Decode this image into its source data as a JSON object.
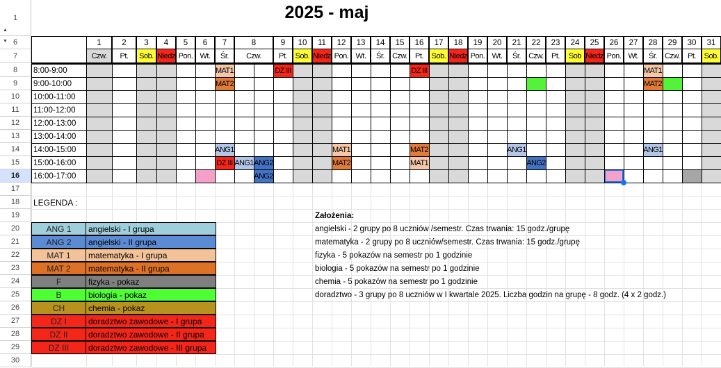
{
  "title": "2025 - maj",
  "colors": {
    "weekend_fill": "#d9d9d9",
    "saturday_header": "#ffff33",
    "sunday_header": "#f4261a",
    "holiday_header": "#d9d9d9",
    "ANG1": "#b4c6e7",
    "ANG2": "#4472c4",
    "MAT1": "#f4c7a8",
    "MAT2": "#e07b39",
    "DZ": "#f4261a",
    "B": "#55f23a",
    "F": "#a6a6a6",
    "pink": "#f4a0c8",
    "selection": "#1a73e8"
  },
  "row_numbers": [
    "1",
    "6",
    "7",
    "8",
    "9",
    "10",
    "11",
    "12",
    "13",
    "14",
    "15",
    "16",
    "17",
    "18",
    "19",
    "20",
    "21",
    "22",
    "23",
    "24",
    "25",
    "26",
    "27",
    "28",
    "29",
    "30"
  ],
  "selected_row": "16",
  "days": [
    {
      "num": "1",
      "name": "Czw.",
      "kind": "holiday"
    },
    {
      "num": "2",
      "name": "Pt.",
      "kind": "work"
    },
    {
      "num": "3",
      "name": "Sob.",
      "kind": "sat"
    },
    {
      "num": "4",
      "name": "Niedz",
      "kind": "sun"
    },
    {
      "num": "5",
      "name": "Pon.",
      "kind": "work"
    },
    {
      "num": "6",
      "name": "Wt.",
      "kind": "work"
    },
    {
      "num": "7",
      "name": "Śr.",
      "kind": "work"
    },
    {
      "num": "8",
      "name": "Czw.",
      "kind": "work"
    },
    {
      "num": "9",
      "name": "Pt.",
      "kind": "work"
    },
    {
      "num": "10",
      "name": "Sob.",
      "kind": "sat"
    },
    {
      "num": "11",
      "name": "Niedz",
      "kind": "sun"
    },
    {
      "num": "12",
      "name": "Pon.",
      "kind": "work"
    },
    {
      "num": "13",
      "name": "Wt.",
      "kind": "work"
    },
    {
      "num": "14",
      "name": "Śr.",
      "kind": "work"
    },
    {
      "num": "15",
      "name": "Czw.",
      "kind": "work"
    },
    {
      "num": "16",
      "name": "Pt.",
      "kind": "work"
    },
    {
      "num": "17",
      "name": "Sob.",
      "kind": "sat"
    },
    {
      "num": "18",
      "name": "Niedz",
      "kind": "sun"
    },
    {
      "num": "19",
      "name": "Pon.",
      "kind": "work"
    },
    {
      "num": "20",
      "name": "Wt.",
      "kind": "work"
    },
    {
      "num": "21",
      "name": "Śr.",
      "kind": "work"
    },
    {
      "num": "22",
      "name": "Czw.",
      "kind": "work"
    },
    {
      "num": "23",
      "name": "Pt.",
      "kind": "work"
    },
    {
      "num": "24",
      "name": "Sob",
      "kind": "sat"
    },
    {
      "num": "25",
      "name": "Niedz",
      "kind": "sun"
    },
    {
      "num": "26",
      "name": "Pon.",
      "kind": "work"
    },
    {
      "num": "27",
      "name": "Wt.",
      "kind": "work"
    },
    {
      "num": "28",
      "name": "Śr.",
      "kind": "work"
    },
    {
      "num": "29",
      "name": "Czw.",
      "kind": "work"
    },
    {
      "num": "30",
      "name": "Pt.",
      "kind": "work"
    },
    {
      "num": "31",
      "name": "Sob.",
      "kind": "sat"
    }
  ],
  "time_slots": [
    "8:00-9:00",
    "9:00-10:00",
    "10:00-11:00",
    "11:00-12:00",
    "12:00-13:00",
    "13:00-14:00",
    "14:00-15:00",
    "15:00-16:00",
    "16:00-17:00"
  ],
  "events": [
    {
      "day": "7",
      "slot": "8:00-9:00",
      "label": "MAT1",
      "color": "MAT1"
    },
    {
      "day": "7",
      "slot": "9:00-10:00",
      "label": "MAT2",
      "color": "MAT2"
    },
    {
      "day": "7",
      "slot": "14:00-15:00",
      "label": "ANG1",
      "color": "ANG1"
    },
    {
      "day": "7",
      "slot": "15:00-16:00",
      "label": "DZ III",
      "color": "DZ"
    },
    {
      "day": "8",
      "sub": 0,
      "slot": "15:00-16:00",
      "label": "ANG1",
      "color": "ANG1"
    },
    {
      "day": "8",
      "sub": 1,
      "slot": "15:00-16:00",
      "label": "ANG2",
      "color": "ANG2"
    },
    {
      "day": "8",
      "sub": 1,
      "slot": "16:00-17:00",
      "label": "ANG2",
      "color": "ANG2"
    },
    {
      "day": "6",
      "slot": "16:00-17:00",
      "label": "",
      "color": "pink"
    },
    {
      "day": "9",
      "slot": "8:00-9:00",
      "label": "DZ III",
      "color": "DZ"
    },
    {
      "day": "12",
      "slot": "14:00-15:00",
      "label": "MAT1",
      "color": "MAT1"
    },
    {
      "day": "12",
      "slot": "15:00-16:00",
      "label": "MAT2",
      "color": "MAT2"
    },
    {
      "day": "16",
      "slot": "8:00-9:00",
      "label": "DZ III",
      "color": "DZ"
    },
    {
      "day": "16",
      "slot": "14:00-15:00",
      "label": "MAT2",
      "color": "MAT2"
    },
    {
      "day": "16",
      "slot": "15:00-16:00",
      "label": "MAT1",
      "color": "MAT1"
    },
    {
      "day": "21",
      "slot": "14:00-15:00",
      "label": "ANG1",
      "color": "ANG1"
    },
    {
      "day": "22",
      "slot": "9:00-10:00",
      "label": "",
      "color": "B"
    },
    {
      "day": "22",
      "slot": "15:00-16:00",
      "label": "ANG2",
      "color": "ANG2"
    },
    {
      "day": "26",
      "slot": "16:00-17:00",
      "label": "",
      "color": "pink",
      "selected": true
    },
    {
      "day": "28",
      "slot": "8:00-9:00",
      "label": "MAT1",
      "color": "MAT1"
    },
    {
      "day": "28",
      "slot": "9:00-10:00",
      "label": "MAT2",
      "color": "MAT2"
    },
    {
      "day": "28",
      "slot": "14:00-15:00",
      "label": "ANG1",
      "color": "ANG1"
    },
    {
      "day": "29",
      "slot": "9:00-10:00",
      "label": "",
      "color": "B"
    },
    {
      "day": "30",
      "slot": "16:00-17:00",
      "label": "",
      "color": "F"
    }
  ],
  "legend": {
    "title": "LEGENDA :",
    "items": [
      {
        "code": "ANG 1",
        "desc": "angielski - I grupa",
        "color": "#9fcfdc"
      },
      {
        "code": "ANG 2",
        "desc": "angielski - II grupa",
        "color": "#5b8bd4"
      },
      {
        "code": "MAT 1",
        "desc": "matematyka - I grupa",
        "color": "#f4c298"
      },
      {
        "code": "MAT 2",
        "desc": "matematyka - II grupa",
        "color": "#dd7125"
      },
      {
        "code": "F",
        "desc": "fizyka - pokaz",
        "color": "#7f7f7f"
      },
      {
        "code": "B",
        "desc": "biologia - pokaz",
        "color": "#4dff33"
      },
      {
        "code": "CH",
        "desc": "chemia - pokaz",
        "color": "#b8921f"
      },
      {
        "code": "DZ I",
        "desc": "doradztwo zawodowe - I grupa",
        "color": "#f4261a"
      },
      {
        "code": "DZ II",
        "desc": "doradztwo zawodowe - II grupa",
        "color": "#f4261a"
      },
      {
        "code": "DZ III",
        "desc": "doradztwo zawodowe - III grupa",
        "color": "#f4261a"
      }
    ]
  },
  "notes": {
    "title": "Założenia:",
    "lines": [
      "angielski - 2 grupy po 8 uczniów /semestr. Czas trwania: 15 godz./grupę",
      "matematyka - 2 grupy po 8 uczniów/semestr. Czas trwania: 15 godz./grupę",
      "fizyka - 5 pokazów na semestr po 1 godzinie",
      "biologia - 5 pokazów na semestr po 1 godzinie",
      "chemia - 5 pokazów na semestr po 1 godzinie",
      "doradztwo - 3 grupy po 8 uczniów w I kwartale 2025. Liczba godzin na grupę - 8 godz. (4 x 2 godz.)"
    ]
  }
}
